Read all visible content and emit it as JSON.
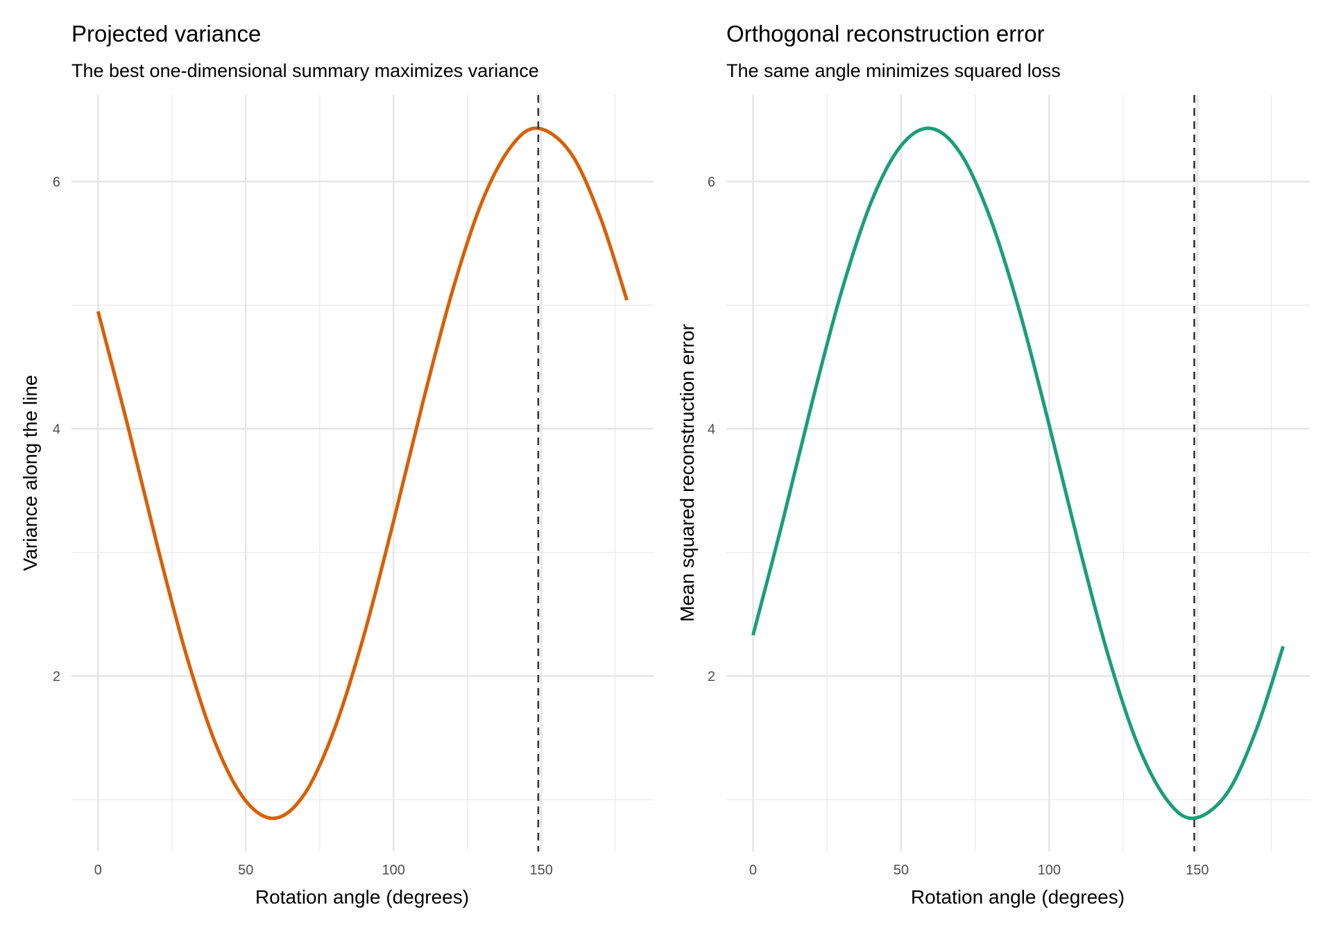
{
  "chart_data": [
    {
      "type": "line",
      "title": "Projected variance",
      "subtitle": "The best one-dimensional summary maximizes variance",
      "xlabel": "Rotation angle (degrees)",
      "ylabel": "Variance along the line",
      "xlim": [
        -9,
        188
      ],
      "ylim": [
        0.58,
        6.7
      ],
      "xticks": [
        0,
        50,
        100,
        150
      ],
      "yticks": [
        2,
        4,
        6
      ],
      "grid": true,
      "color": "#d95f02",
      "vline": 149,
      "x": [
        0,
        10,
        20,
        30,
        40,
        50,
        60,
        70,
        80,
        90,
        100,
        110,
        120,
        130,
        140,
        149,
        160,
        170,
        179
      ],
      "y": [
        4.95,
        4.03,
        3.06,
        2.16,
        1.44,
        0.99,
        0.85,
        1.05,
        1.57,
        2.33,
        3.25,
        4.22,
        5.12,
        5.84,
        6.29,
        6.43,
        6.23,
        5.71,
        5.04
      ]
    },
    {
      "type": "line",
      "title": "Orthogonal reconstruction error",
      "subtitle": "The same angle minimizes squared loss",
      "xlabel": "Rotation angle (degrees)",
      "ylabel": "Mean squared reconstruction error",
      "xlim": [
        -9,
        188
      ],
      "ylim": [
        0.58,
        6.7
      ],
      "xticks": [
        0,
        50,
        100,
        150
      ],
      "yticks": [
        2,
        4,
        6
      ],
      "grid": true,
      "color": "#1b9e77",
      "vline": 149,
      "x": [
        0,
        10,
        20,
        30,
        40,
        50,
        60,
        70,
        80,
        90,
        100,
        110,
        120,
        130,
        140,
        149,
        160,
        170,
        179
      ],
      "y": [
        2.33,
        3.25,
        4.22,
        5.12,
        5.84,
        6.29,
        6.43,
        6.23,
        5.71,
        4.95,
        4.03,
        3.06,
        2.16,
        1.44,
        0.99,
        0.85,
        1.05,
        1.57,
        2.24
      ]
    }
  ]
}
